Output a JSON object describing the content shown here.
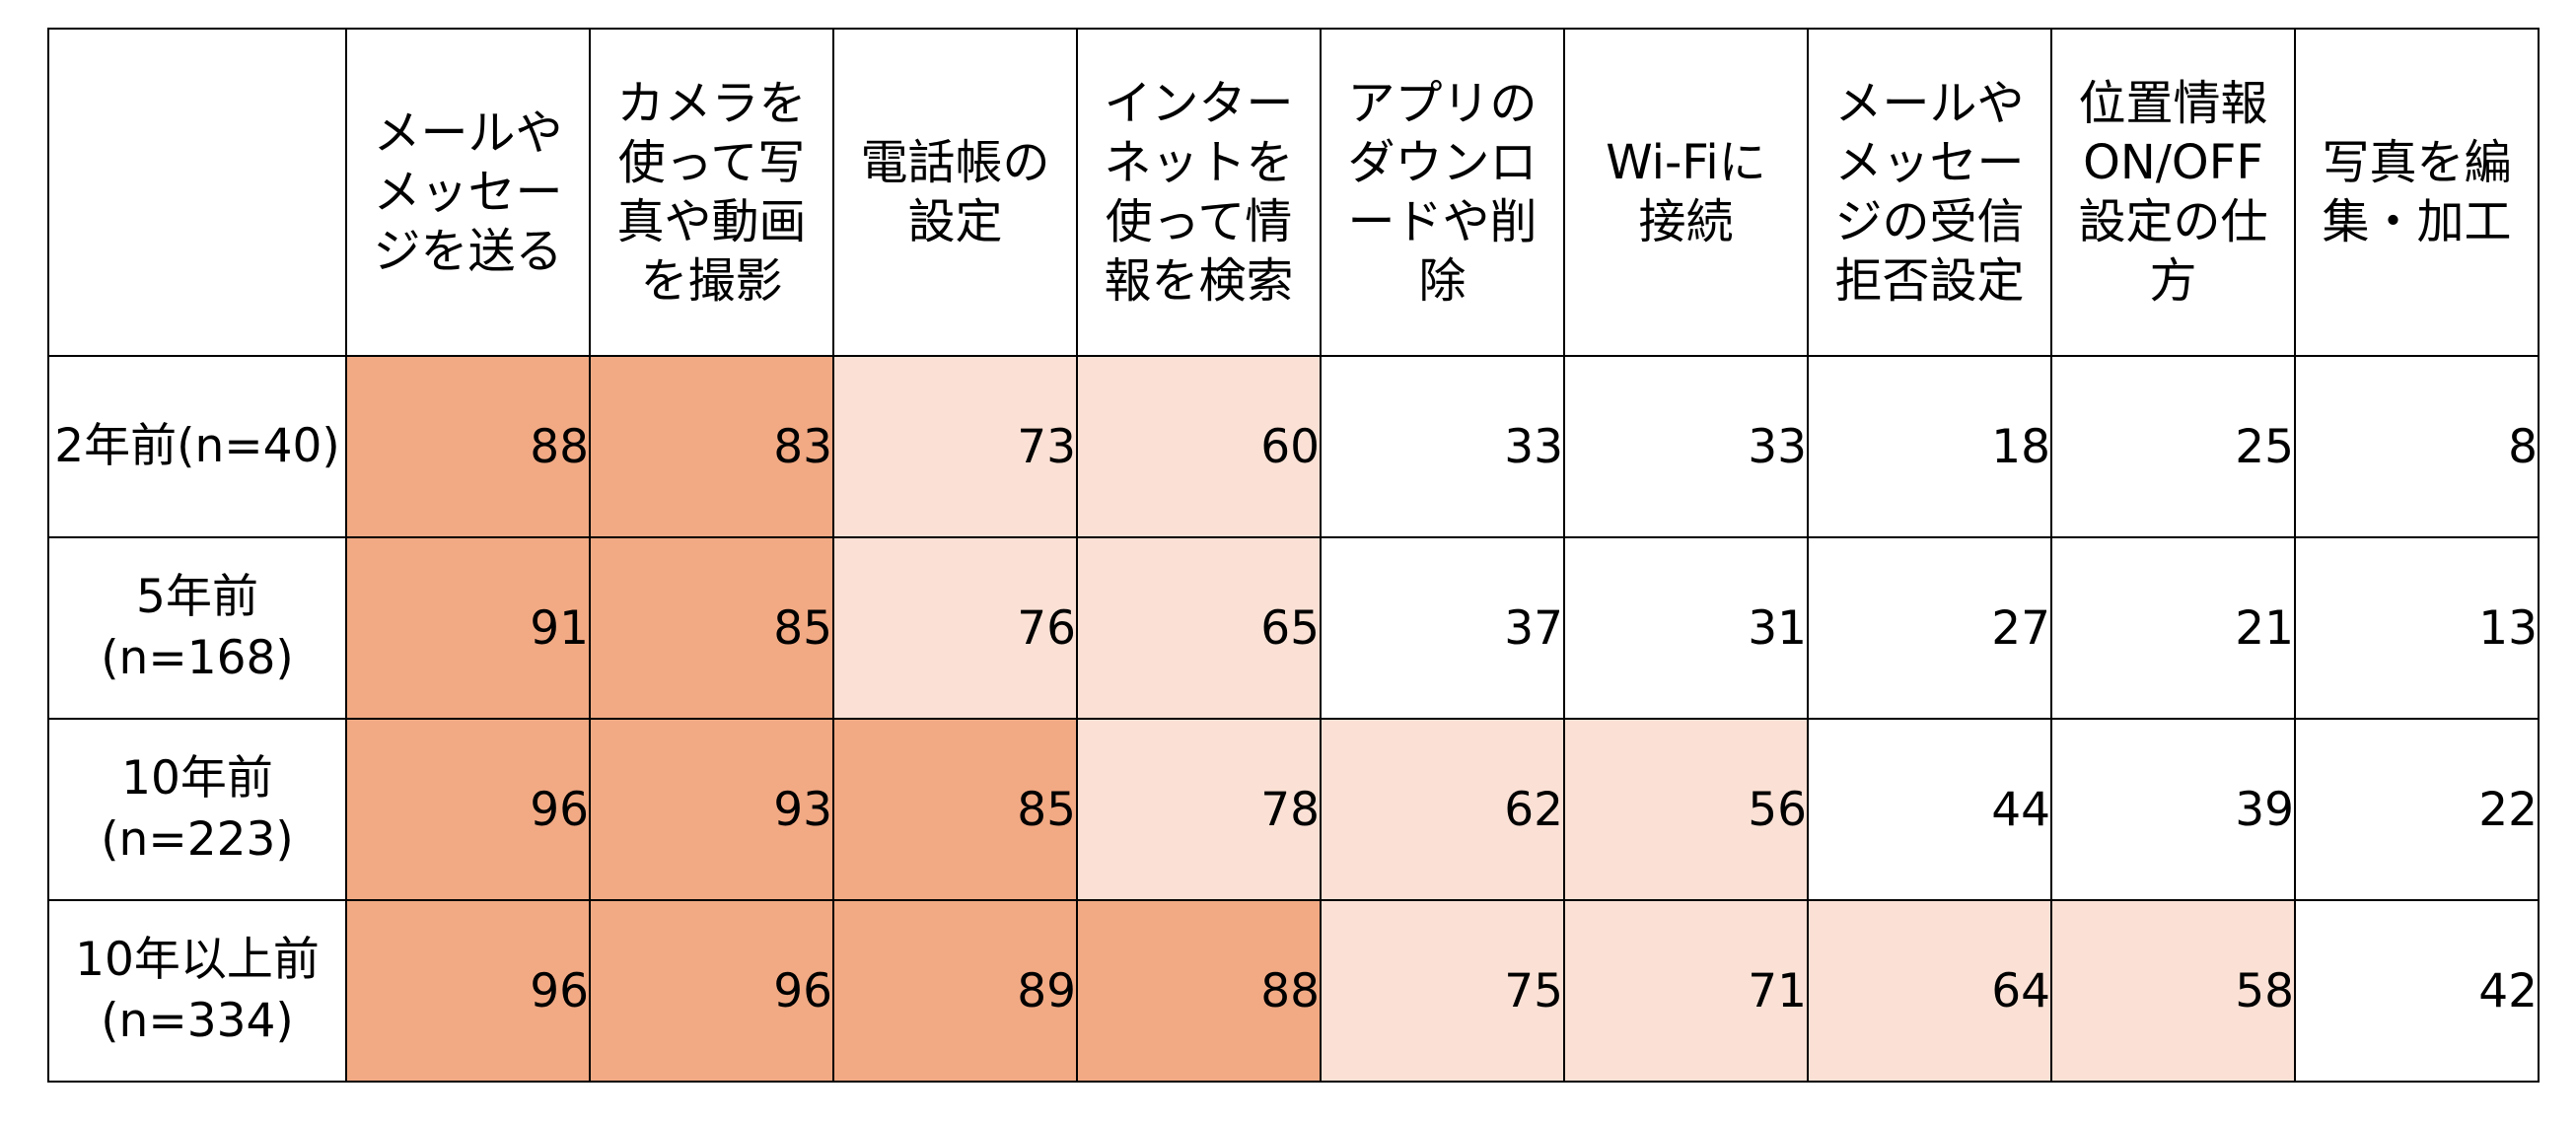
{
  "chart_data": {
    "type": "table",
    "columns": [
      "メールやメッセージを送る",
      "カメラを使って写真や動画を撮影",
      "電話帳の設定",
      "インターネットを使って情報を検索",
      "アプリのダウンロードや削除",
      "Wi-Fiに接続",
      "メールやメッセージの受信拒否設定",
      "位置情報ON/OFF設定の仕方",
      "写真を編集・加工"
    ],
    "rows": [
      {
        "label_lines": [
          "2年前(n=40)"
        ],
        "values": [
          88,
          83,
          73,
          60,
          33,
          33,
          18,
          25,
          8
        ]
      },
      {
        "label_lines": [
          "5年前",
          "(n=168)"
        ],
        "values": [
          91,
          85,
          76,
          65,
          37,
          31,
          27,
          21,
          13
        ]
      },
      {
        "label_lines": [
          "10年前",
          "(n=223)"
        ],
        "values": [
          96,
          93,
          85,
          78,
          62,
          56,
          44,
          39,
          22
        ]
      },
      {
        "label_lines": [
          "10年以上前",
          "(n=334)"
        ],
        "values": [
          96,
          96,
          89,
          88,
          75,
          71,
          64,
          58,
          42
        ]
      }
    ],
    "shading": {
      "high_color": "#f2aa84",
      "mid_color": "#fbe1d5",
      "low_color": "#ffffff",
      "high_min": 80,
      "mid_min": 50
    }
  }
}
